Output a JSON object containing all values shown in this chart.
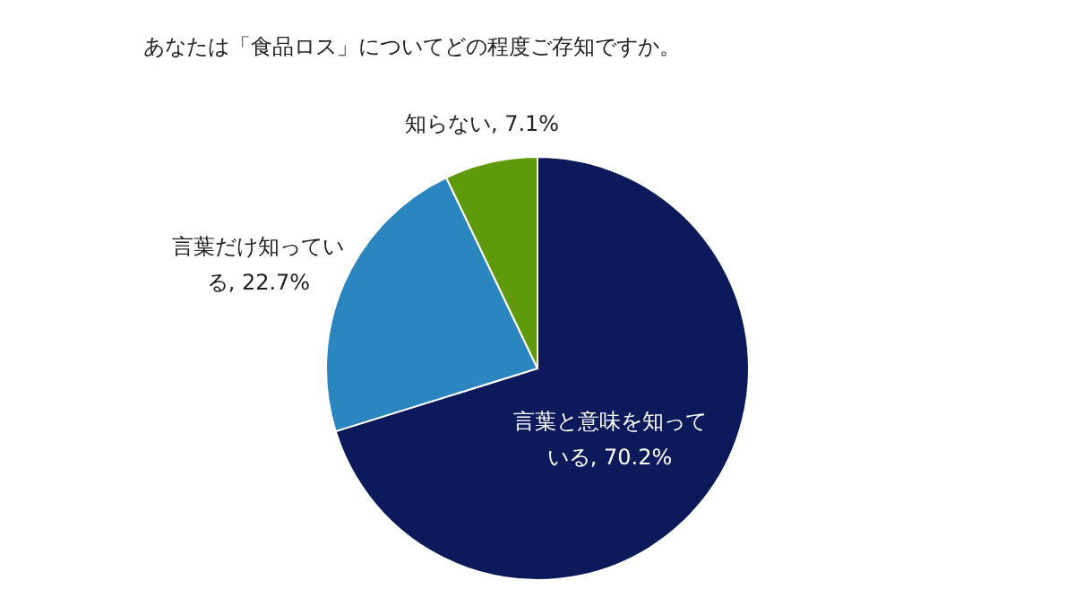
{
  "chart_data": {
    "type": "pie",
    "title": "あなたは「食品ロス」についてどの程度ご存知ですか。",
    "categories": [
      "言葉と意味を知っている",
      "言葉だけ知っている",
      "知らない"
    ],
    "values": [
      70.2,
      22.7,
      7.1
    ],
    "colors": [
      "#0c1a5c",
      "#2b86c0",
      "#5e9a0c"
    ],
    "value_labels": [
      "70.2%",
      "22.7%",
      "7.1%"
    ]
  }
}
